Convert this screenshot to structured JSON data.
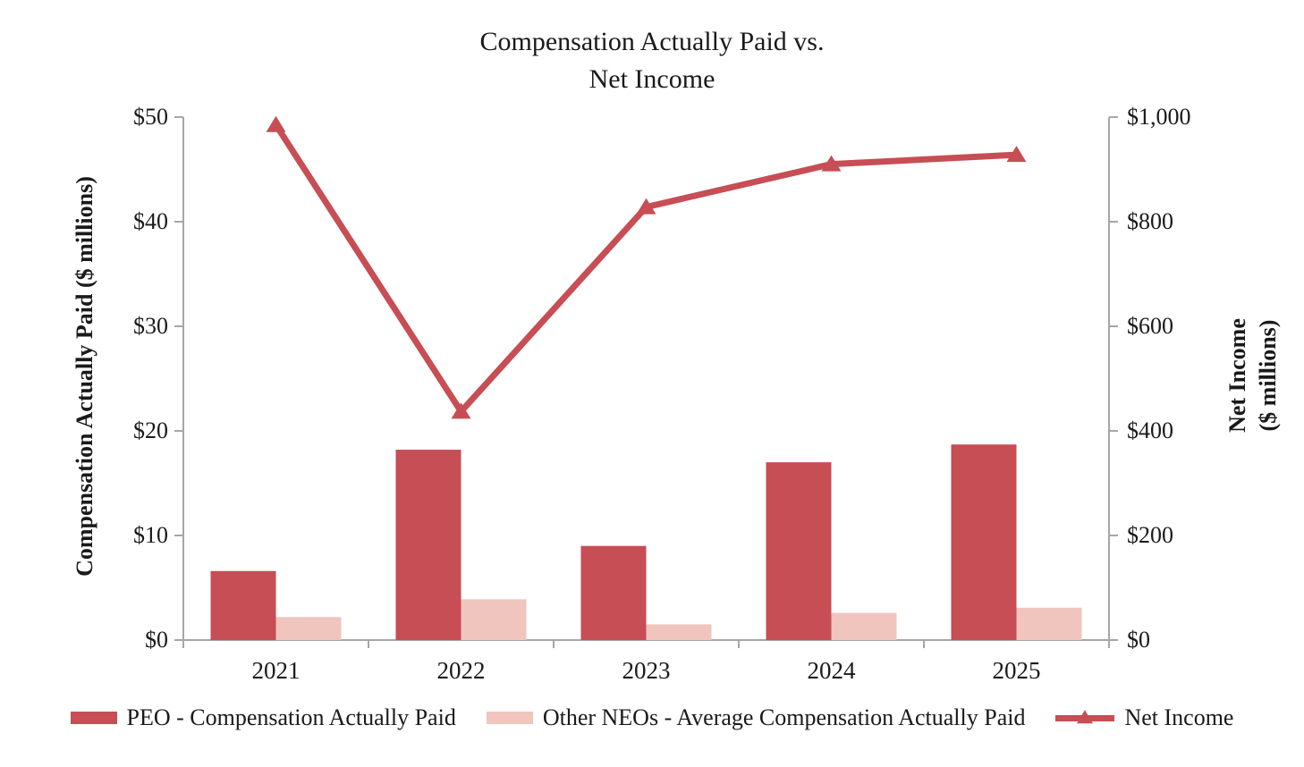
{
  "chart_data": {
    "type": "combo-bar-line",
    "title": "Compensation Actually Paid vs.\nNet Income",
    "categories": [
      "2021",
      "2022",
      "2023",
      "2024",
      "2025"
    ],
    "series": [
      {
        "id": "peo",
        "name": "PEO - Compensation Actually Paid",
        "type": "bar",
        "axis": "left",
        "color": "#C64E54",
        "values": [
          6.6,
          18.2,
          9.0,
          17.0,
          18.7
        ]
      },
      {
        "id": "other-neos",
        "name": "Other NEOs - Average Compensation Actually Paid",
        "type": "bar",
        "axis": "left",
        "color": "#EFC5BD",
        "values": [
          2.2,
          3.9,
          1.5,
          2.6,
          3.1
        ]
      },
      {
        "id": "net-income",
        "name": "Net Income",
        "type": "line",
        "axis": "right",
        "marker": "triangle-up",
        "color": "#C64E54",
        "values": [
          985,
          437,
          828,
          910,
          928
        ]
      }
    ],
    "left_axis": {
      "label": "Compensation Actually Paid ($ millions)",
      "min": 0,
      "max": 50,
      "tick_labels": [
        "$0",
        "$10",
        "$20",
        "$30",
        "$40",
        "$50"
      ]
    },
    "right_axis": {
      "label": "Net Income\n($ millions)",
      "min": 0,
      "max": 1000,
      "tick_labels": [
        "$0",
        "$200",
        "$400",
        "$600",
        "$800",
        "$1,000"
      ]
    },
    "x_axis": {
      "tick_labels": [
        "2021",
        "2022",
        "2023",
        "2024",
        "2025"
      ]
    },
    "legend_position": "bottom",
    "grid": false,
    "axis_color": "#A6A6A6",
    "text_color": "#1A1A1A",
    "background": "#FFFFFF"
  }
}
